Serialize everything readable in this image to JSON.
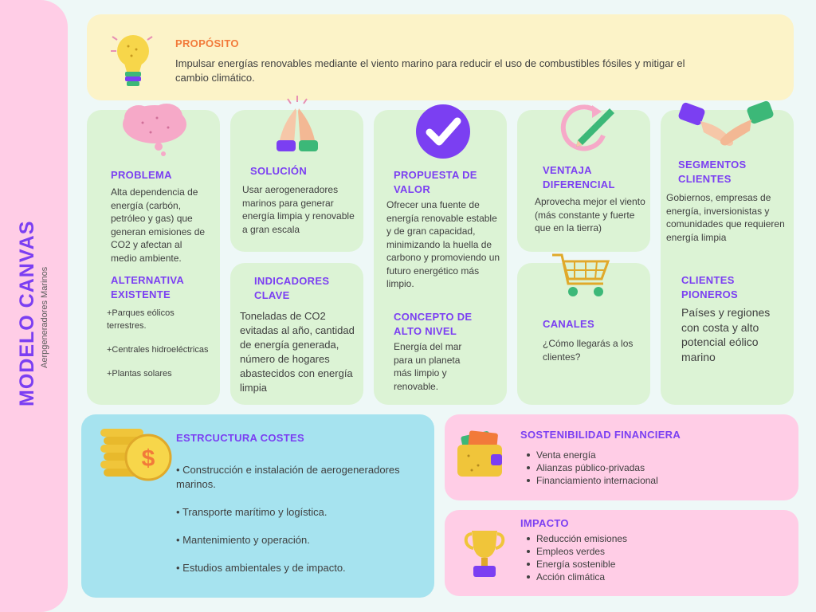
{
  "sidebar": {
    "title": "MODELO CANVAS",
    "subtitle": "Aerpgeneradores Marinos"
  },
  "proposito": {
    "title": "PROPÓSITO",
    "text": "Impulsar energías renovables mediante el viento marino para reducir el uso de combustibles fósiles y mitigar el cambio climático."
  },
  "problema": {
    "title": "PROBLEMA",
    "text": "Alta dependencia de energía (carbón, petróleo y gas) que generan emisiones de CO2 y afectan al medio ambiente."
  },
  "alternativa": {
    "title": "ALTERNATIVA EXISTENTE",
    "items": [
      "+Parques eólicos terrestres.",
      "+Centrales hidroeléctricas",
      "+Plantas solares"
    ]
  },
  "solucion": {
    "title": "SOLUCIÓN",
    "text": "Usar aerogeneradores marinos para generar energía limpia y renovable a gran escala"
  },
  "indicadores": {
    "title": "INDICADORES CLAVE",
    "text": "Toneladas de CO2 evitadas al año, cantidad de energía generada, número de hogares abastecidos con energía limpia"
  },
  "propuesta": {
    "title": "PROPUESTA DE VALOR",
    "text": "Ofrecer una fuente de energía renovable estable y de gran capacidad, minimizando la huella de carbono y promoviendo un futuro energético más limpio."
  },
  "concepto": {
    "title": "CONCEPTO DE ALTO NIVEL",
    "text": "Energía del mar para un planeta más limpio y renovable."
  },
  "ventaja": {
    "title": "VENTAJA DIFERENCIAL",
    "text": "Aprovecha mejor el viento (más constante y fuerte que en la tierra)"
  },
  "canales": {
    "title": "CANALES",
    "text": "¿Cómo llegarás a los clientes?"
  },
  "segmentos": {
    "title": "SEGMENTOS CLIENTES",
    "text": "Gobiernos, empresas de energía, inversionistas y comunidades que requieren energía limpia"
  },
  "pioneros": {
    "title": "CLIENTES PIONEROS",
    "text": "Países y regiones con costa y alto potencial eólico marino"
  },
  "costes": {
    "title": "ESTRCUCTURA COSTES",
    "items": [
      "• Construcción e instalación de aerogeneradores marinos.",
      "• Transporte marítimo y logística.",
      "• Mantenimiento y operación.",
      "• Estudios ambientales y de impacto."
    ]
  },
  "sostenibilidad": {
    "title": "SOSTENIBILIDAD FINANCIERA",
    "items": [
      "Venta energía",
      "Alianzas público-privadas",
      "Financiamiento internacional"
    ]
  },
  "impacto": {
    "title": "IMPACTO",
    "items": [
      "Reducción emisiones",
      "Empleos verdes",
      "Energía sostenible",
      "Acción climática"
    ]
  },
  "colors": {
    "accent": "#7b3ff2",
    "orange": "#f27a3a",
    "yellow_box": "#fcf3c8",
    "green_box": "#dcf3d5",
    "blue_box": "#a6e3ef",
    "pink_box": "#ffcde6"
  },
  "icons": [
    "lightbulb-icon",
    "cloud-icon",
    "praying-hands-icon",
    "checkmark-icon",
    "refresh-pencil-icon",
    "handshake-icon",
    "shopping-cart-icon",
    "coins-icon",
    "wallet-icon",
    "trophy-icon"
  ]
}
